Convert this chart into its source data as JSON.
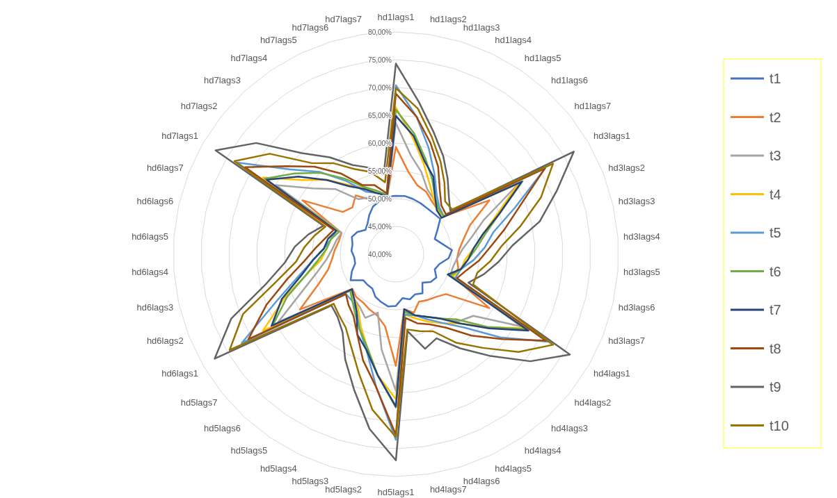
{
  "chart_data": {
    "type": "radar",
    "categories": [
      "hd1lags1",
      "hd1lags2",
      "hd1lags3",
      "hd1lags4",
      "hd1lags5",
      "hd1lags6",
      "hd1lags7",
      "hd3lags1",
      "hd3lags2",
      "hd3lags3",
      "hd3lags4",
      "hd3lags5",
      "hd3lags6",
      "hd3lags7",
      "hd4lags1",
      "hd4lags2",
      "hd4lags3",
      "hd4lags4",
      "hd4lags5",
      "hd4lags6",
      "hd4lags7",
      "hd5lags1",
      "hd5lags2",
      "hd5lags3",
      "hd5lags4",
      "hd5lags5",
      "hd5lags6",
      "hd5lags7",
      "hd6lags1",
      "hd6lags2",
      "hd6lags3",
      "hd6lags4",
      "hd6lags5",
      "hd6lags6",
      "hd6lags7",
      "hd7lags1",
      "hd7lags2",
      "hd7lags3",
      "hd7lags4",
      "hd7lags5",
      "hd7lags6",
      "hd7lags7"
    ],
    "ylim": [
      40,
      80
    ],
    "yticks": [
      {
        "value": 40,
        "label": "40,00%"
      },
      {
        "value": 45,
        "label": "45,00%"
      },
      {
        "value": 50,
        "label": "50,00%"
      },
      {
        "value": 55,
        "label": "55,00%"
      },
      {
        "value": 60,
        "label": "60,00%"
      },
      {
        "value": 65,
        "label": "65,00%"
      },
      {
        "value": 70,
        "label": "70,00%"
      },
      {
        "value": 75,
        "label": "75,00%"
      },
      {
        "value": 80,
        "label": "80,00%"
      }
    ],
    "grid": true,
    "legend": "right",
    "marker": "none",
    "line_style": "solid",
    "series": [
      {
        "name": "t1",
        "color": "#4472c4",
        "values": [
          50.5,
          50.6,
          50.4,
          50.2,
          50.0,
          50.0,
          50.2,
          48.6,
          47.5,
          48.5,
          50.1,
          49.5,
          48.0,
          47.5,
          48.4,
          48.0,
          47.0,
          48.5,
          48.0,
          48.5,
          48.0,
          49.3,
          49.5,
          49.0,
          48.5,
          47.5,
          47.5,
          47.5,
          49.4,
          48.5,
          47.5,
          47.5,
          48.0,
          48.0,
          48.5,
          48.0,
          47.0,
          47.5,
          48.5,
          49.5,
          50.0,
          50.5
        ]
      },
      {
        "name": "t2",
        "color": "#ed7d31",
        "values": [
          59.3,
          55.0,
          53.0,
          52.5,
          51.5,
          51.0,
          50.8,
          59.4,
          54.3,
          52.5,
          51.4,
          51.0,
          51.5,
          51.0,
          59.4,
          51.5,
          50.5,
          50.0,
          49.5,
          51.0,
          50.0,
          60.1,
          53.1,
          51.5,
          51.0,
          50.5,
          50.5,
          50.0,
          59.9,
          55.0,
          52.5,
          51.5,
          51.0,
          50.5,
          50.5,
          59.4,
          52.2,
          51.5,
          52.8,
          51.0,
          50.5,
          50.5
        ]
      },
      {
        "name": "t3",
        "color": "#a5a5a5",
        "values": [
          63.6,
          58.0,
          55.5,
          53.0,
          52.0,
          51.2,
          51.0,
          65.5,
          57.0,
          54.0,
          52.0,
          51.0,
          50.5,
          50.5,
          66.0,
          57.8,
          56.5,
          54.0,
          52.5,
          51.5,
          50.5,
          64.6,
          57.3,
          51.0,
          52.7,
          51.5,
          51.0,
          50.5,
          64.4,
          58.0,
          54.5,
          52.5,
          51.5,
          51.0,
          50.5,
          64.9,
          59.0,
          56.0,
          52.0,
          51.3,
          50.5,
          50.5
        ]
      },
      {
        "name": "t4",
        "color": "#ffc000",
        "values": [
          66.4,
          61.0,
          57.0,
          54.0,
          52.0,
          51.0,
          50.8,
          65.5,
          59.5,
          56.0,
          54.0,
          52.5,
          52.0,
          51.0,
          66.7,
          61.0,
          57.0,
          55.0,
          53.5,
          52.1,
          51.0,
          66.1,
          62.0,
          57.5,
          54.5,
          52.0,
          51.0,
          50.5,
          67.6,
          61.5,
          56.5,
          53.5,
          52.5,
          52.0,
          51.0,
          67.6,
          61.4,
          58.3,
          55.1,
          53.3,
          51.6,
          50.5
        ]
      },
      {
        "name": "t5",
        "color": "#5b9bd5",
        "values": [
          70.4,
          65.0,
          60.0,
          56.0,
          53.0,
          51.5,
          51.0,
          71.0,
          63.0,
          58.0,
          56.0,
          54.0,
          52.0,
          51.5,
          71.5,
          64.0,
          58.0,
          55.0,
          53.0,
          51.5,
          51.0,
          73.4,
          64.0,
          58.0,
          55.0,
          52.5,
          51.5,
          51.5,
          72.0,
          63.0,
          58.0,
          55.0,
          53.0,
          52.0,
          51.5,
          73.0,
          64.5,
          60.2,
          56.0,
          52.5,
          51.5,
          51.0
        ]
      },
      {
        "name": "t6",
        "color": "#70ad47",
        "values": [
          66.0,
          62.0,
          58.0,
          55.0,
          52.5,
          51.2,
          51.0,
          66.3,
          60.0,
          56.5,
          54.5,
          53.0,
          52.0,
          50.5,
          67.0,
          61.0,
          56.0,
          54.0,
          52.5,
          51.5,
          50.5,
          67.6,
          62.0,
          57.5,
          55.0,
          53.0,
          51.5,
          50.5,
          65.5,
          61.0,
          56.5,
          54.0,
          52.5,
          52.0,
          51.0,
          67.2,
          63.3,
          60.0,
          56.5,
          53.5,
          52.0,
          50.8
        ]
      },
      {
        "name": "t7",
        "color": "#264478",
        "values": [
          64.9,
          61.5,
          57.5,
          55.5,
          52.5,
          50.8,
          50.5,
          66.1,
          60.0,
          56.0,
          54.0,
          53.0,
          52.0,
          50.0,
          67.5,
          61.4,
          57.0,
          54.0,
          52.5,
          51.5,
          50.0,
          67.4,
          62.0,
          58.0,
          56.0,
          52.5,
          51.0,
          50.1,
          65.8,
          62.0,
          57.5,
          55.0,
          53.0,
          52.5,
          51.5,
          66.8,
          62.4,
          58.2,
          54.8,
          53.0,
          51.5,
          50.6
        ]
      },
      {
        "name": "t8",
        "color": "#9e480e",
        "values": [
          68.9,
          65.0,
          61.0,
          57.5,
          54.0,
          52.0,
          51.5,
          70.9,
          64.0,
          60.0,
          57.0,
          55.0,
          53.0,
          51.8,
          71.1,
          64.5,
          60.0,
          56.0,
          54.0,
          53.0,
          51.6,
          72.5,
          64.1,
          60.0,
          56.0,
          53.5,
          52.5,
          51.5,
          70.6,
          65.0,
          60.0,
          56.5,
          54.5,
          53.0,
          52.0,
          71.3,
          65.4,
          61.5,
          57.6,
          53.8,
          53.0,
          51.1
        ]
      },
      {
        "name": "t9",
        "color": "#636363",
        "values": [
          74.3,
          67.7,
          63.0,
          59.6,
          56.5,
          54.0,
          52.5,
          76.9,
          71.0,
          66.5,
          61.0,
          58.5,
          56.2,
          54.0,
          76.1,
          70.9,
          65.0,
          60.5,
          56.8,
          57.8,
          54.0,
          77.1,
          71.8,
          65.5,
          61.0,
          57.0,
          55.4,
          54.8,
          77.6,
          71.8,
          63.9,
          60.0,
          58.2,
          56.1,
          54.0,
          77.4,
          72.1,
          64.8,
          61.1,
          57.8,
          56.3,
          54.6
        ]
      },
      {
        "name": "t10",
        "color": "#997300",
        "values": [
          69.9,
          66.5,
          62.0,
          58.5,
          55.5,
          53.0,
          52.9,
          72.6,
          68.0,
          63.0,
          59.0,
          57.0,
          55.0,
          54.9,
          72.6,
          68.2,
          63.0,
          59.3,
          55.4,
          54.5,
          53.7,
          72.9,
          68.3,
          62.5,
          58.5,
          56.0,
          55.0,
          54.3,
          74.5,
          69.5,
          62.0,
          58.0,
          56.5,
          55.0,
          53.6,
          73.5,
          69.0,
          62.4,
          59.8,
          57.0,
          55.5,
          53.1
        ]
      }
    ]
  }
}
